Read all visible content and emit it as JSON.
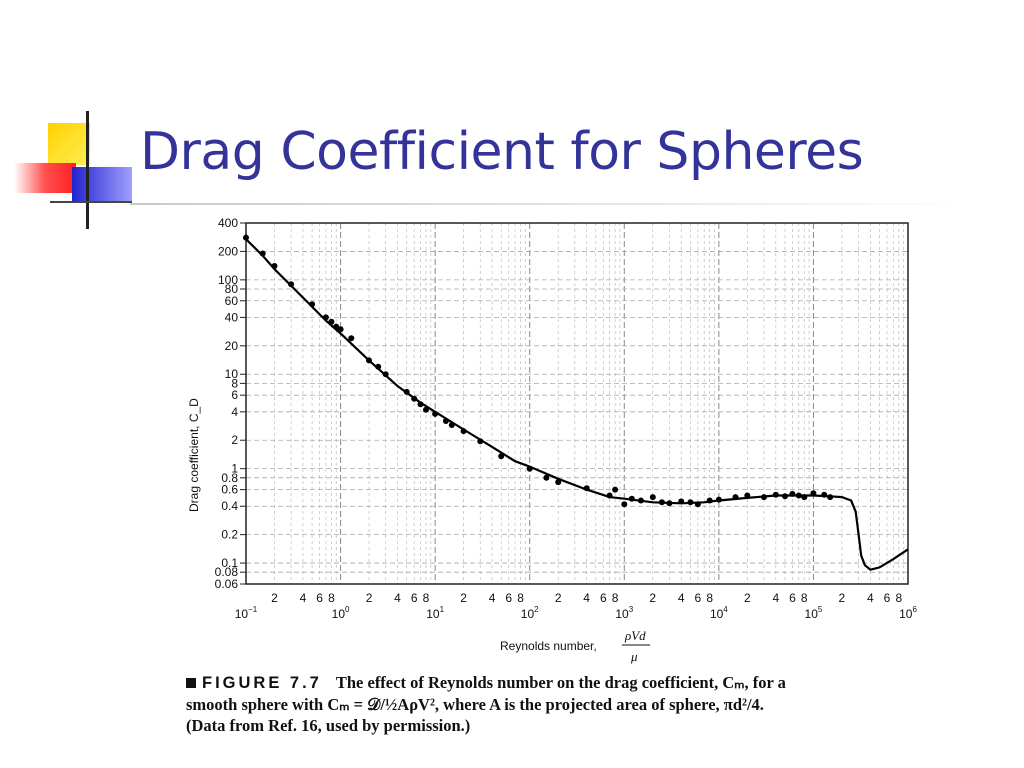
{
  "slide": {
    "title": "Drag Coefficient for Spheres",
    "accent_color": "#333399"
  },
  "caption": {
    "figure_label": "FIGURE 7.7",
    "line1": "The effect of Reynolds number on the drag coefficient, Cₘ, for a",
    "line2": "smooth sphere with Cₘ = 𝒟/½AρV², where A is the projected area of sphere, πd²/4.",
    "line3": "(Data from Ref. 16, used by permission.)"
  },
  "chart_data": {
    "type": "line",
    "x_scale": "log",
    "y_scale": "log",
    "xlim": [
      0.1,
      1000000
    ],
    "ylim": [
      0.06,
      400
    ],
    "ylabel": "Drag coefficient, C_D",
    "xlabel": "Reynolds number,",
    "xlabel_formula": {
      "numerator": "ρVd",
      "denominator": "μ"
    },
    "y_tick_labels": [
      "400",
      "200",
      "100",
      "80",
      "60",
      "40",
      "20",
      "10",
      "8",
      "6",
      "4",
      "2",
      "1",
      "0.8",
      "0.6",
      "0.4",
      "0.2",
      "0.1",
      "0.08",
      "0.06"
    ],
    "x_decade_labels": [
      {
        "base": "10",
        "exp": "−1"
      },
      {
        "base": "10",
        "exp": "0"
      },
      {
        "base": "10",
        "exp": "1"
      },
      {
        "base": "10",
        "exp": "2"
      },
      {
        "base": "10",
        "exp": "3"
      },
      {
        "base": "10",
        "exp": "4"
      },
      {
        "base": "10",
        "exp": "5"
      },
      {
        "base": "10",
        "exp": "6"
      }
    ],
    "x_minor_labels": [
      "2",
      "4",
      "6",
      "8"
    ],
    "grid": true,
    "curve": {
      "x": [
        0.1,
        0.15,
        0.2,
        0.4,
        0.7,
        1,
        2,
        4,
        7,
        10,
        20,
        40,
        70,
        100,
        200,
        400,
        700,
        1000,
        2000,
        4000,
        7000,
        10000,
        20000,
        40000,
        70000,
        100000,
        150000,
        200000,
        250000,
        280000,
        300000,
        320000,
        350000,
        400000,
        500000,
        700000,
        1000000
      ],
      "y": [
        270,
        180,
        130,
        65,
        37,
        27,
        14,
        7.5,
        5,
        4.0,
        2.6,
        1.7,
        1.2,
        1.05,
        0.78,
        0.6,
        0.5,
        0.48,
        0.44,
        0.43,
        0.44,
        0.46,
        0.49,
        0.52,
        0.52,
        0.52,
        0.51,
        0.5,
        0.46,
        0.35,
        0.2,
        0.12,
        0.095,
        0.085,
        0.09,
        0.11,
        0.14
      ]
    },
    "points": {
      "x": [
        0.1,
        0.15,
        0.2,
        0.3,
        0.5,
        0.7,
        0.8,
        0.9,
        1,
        1.3,
        2,
        2.5,
        3,
        5,
        6,
        7,
        8,
        10,
        13,
        15,
        20,
        30,
        50,
        100,
        150,
        200,
        400,
        700,
        800,
        1000,
        1200,
        1500,
        2000,
        2500,
        3000,
        4000,
        5000,
        6000,
        8000,
        10000,
        15000,
        20000,
        30000,
        40000,
        50000,
        60000,
        70000,
        80000,
        100000,
        130000,
        150000
      ],
      "y": [
        280,
        190,
        140,
        90,
        55,
        40,
        36,
        32,
        30,
        24,
        14,
        12,
        10,
        6.5,
        5.5,
        4.8,
        4.2,
        3.8,
        3.2,
        2.9,
        2.5,
        1.95,
        1.35,
        1.0,
        0.8,
        0.72,
        0.62,
        0.52,
        0.6,
        0.42,
        0.48,
        0.46,
        0.5,
        0.44,
        0.43,
        0.45,
        0.44,
        0.42,
        0.46,
        0.47,
        0.5,
        0.52,
        0.5,
        0.53,
        0.51,
        0.54,
        0.52,
        0.5,
        0.55,
        0.53,
        0.5
      ]
    }
  }
}
